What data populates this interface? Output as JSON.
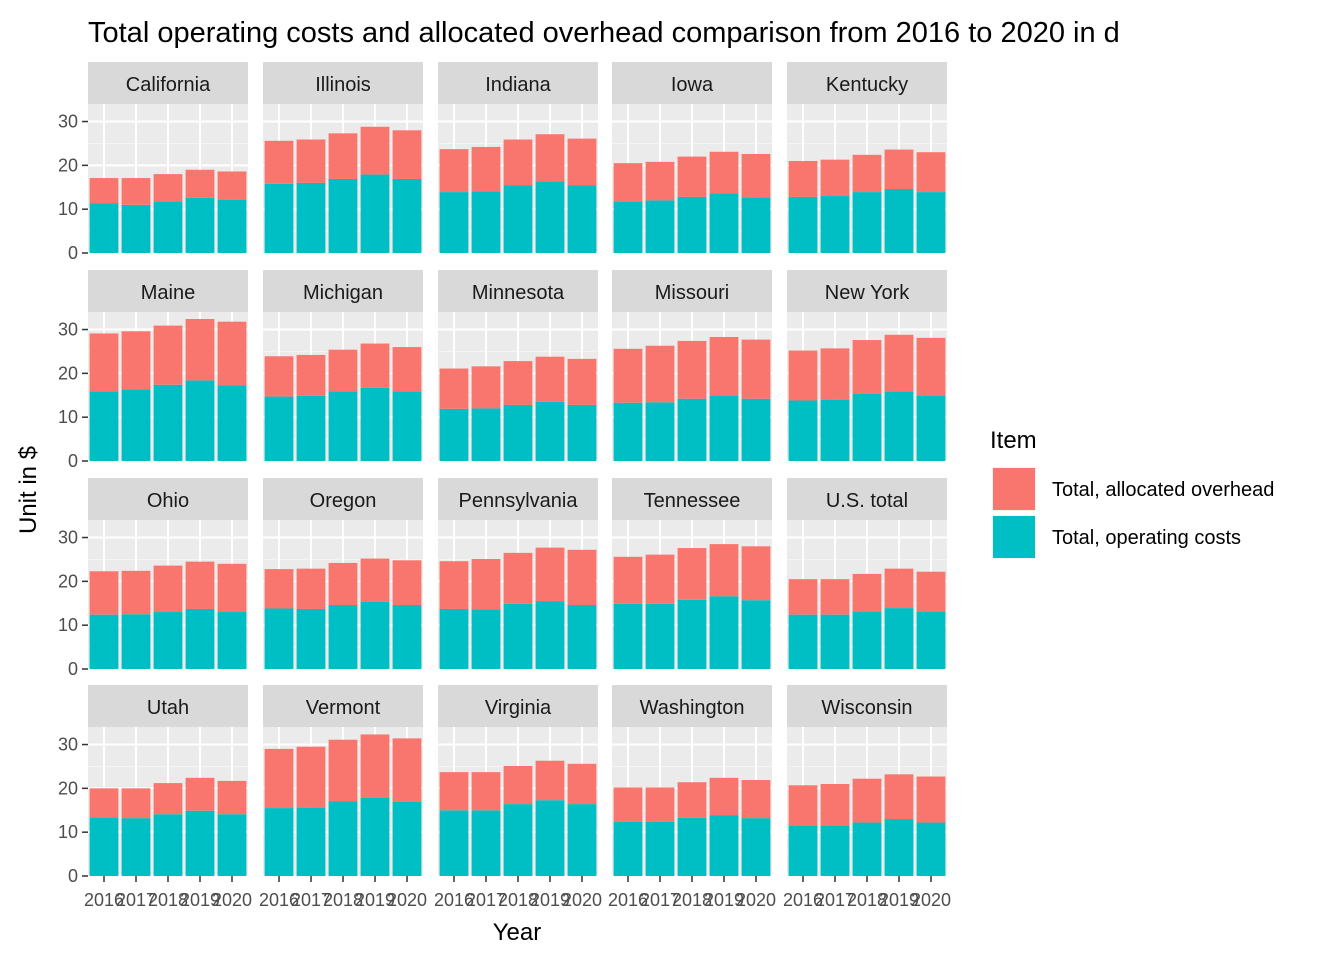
{
  "chart_data": {
    "type": "bar",
    "stacked": true,
    "faceted": true,
    "title": "Total operating costs and allocated overhead comparison from 2016 to 2020 in d",
    "xlabel": "Year",
    "ylabel": "Unit in $",
    "ylim": [
      0,
      34
    ],
    "yticks": [
      0,
      10,
      20,
      30
    ],
    "categories": [
      "2016",
      "2017",
      "2018",
      "2019",
      "2020"
    ],
    "grid": true,
    "legend": {
      "title": "Item",
      "position": "right",
      "entries": [
        {
          "name": "Total, allocated overhead",
          "color": "#F8766D"
        },
        {
          "name": "Total, operating costs",
          "color": "#00BFC4"
        }
      ]
    },
    "stack_order": [
      "Total, operating costs",
      "Total, allocated overhead"
    ],
    "panels": [
      {
        "name": "California",
        "operating": [
          11.3,
          11.0,
          11.8,
          12.6,
          12.1
        ],
        "overhead": [
          5.8,
          6.1,
          6.2,
          6.4,
          6.5
        ]
      },
      {
        "name": "Illinois",
        "operating": [
          15.8,
          16.0,
          16.9,
          17.9,
          16.9
        ],
        "overhead": [
          9.8,
          9.9,
          10.4,
          10.9,
          11.1
        ]
      },
      {
        "name": "Indiana",
        "operating": [
          13.9,
          14.1,
          15.4,
          16.3,
          15.4
        ],
        "overhead": [
          9.8,
          10.1,
          10.5,
          10.8,
          10.7
        ]
      },
      {
        "name": "Iowa",
        "operating": [
          11.8,
          12.0,
          12.8,
          13.6,
          12.7
        ],
        "overhead": [
          8.7,
          8.8,
          9.2,
          9.5,
          9.9
        ]
      },
      {
        "name": "Kentucky",
        "operating": [
          12.8,
          13.0,
          13.9,
          14.6,
          13.9
        ],
        "overhead": [
          8.2,
          8.3,
          8.5,
          9.0,
          9.1
        ]
      },
      {
        "name": "Maine",
        "operating": [
          15.9,
          16.3,
          17.4,
          18.4,
          17.3
        ],
        "overhead": [
          13.2,
          13.3,
          13.5,
          14.0,
          14.5
        ]
      },
      {
        "name": "Michigan",
        "operating": [
          14.7,
          14.9,
          15.9,
          16.7,
          15.9
        ],
        "overhead": [
          9.2,
          9.3,
          9.5,
          10.1,
          10.1
        ]
      },
      {
        "name": "Minnesota",
        "operating": [
          11.9,
          12.0,
          12.8,
          13.5,
          12.8
        ],
        "overhead": [
          9.2,
          9.6,
          10.0,
          10.3,
          10.5
        ]
      },
      {
        "name": "Missouri",
        "operating": [
          13.3,
          13.4,
          14.2,
          15.0,
          14.2
        ],
        "overhead": [
          12.3,
          12.9,
          13.2,
          13.3,
          13.5
        ]
      },
      {
        "name": "New York",
        "operating": [
          13.8,
          14.0,
          15.3,
          15.9,
          15.0
        ],
        "overhead": [
          11.4,
          11.7,
          12.3,
          12.9,
          13.1
        ]
      },
      {
        "name": "Ohio",
        "operating": [
          12.4,
          12.5,
          13.0,
          13.7,
          13.0
        ],
        "overhead": [
          9.9,
          9.9,
          10.6,
          10.8,
          11.0
        ]
      },
      {
        "name": "Oregon",
        "operating": [
          13.8,
          13.7,
          14.6,
          15.3,
          14.6
        ],
        "overhead": [
          9.0,
          9.2,
          9.6,
          9.9,
          10.2
        ]
      },
      {
        "name": "Pennsylvania",
        "operating": [
          13.7,
          13.6,
          14.9,
          15.5,
          14.6
        ],
        "overhead": [
          10.9,
          11.5,
          11.6,
          12.2,
          12.6
        ]
      },
      {
        "name": "Tennessee",
        "operating": [
          14.9,
          14.9,
          15.8,
          16.6,
          15.7
        ],
        "overhead": [
          10.7,
          11.2,
          11.8,
          11.9,
          12.3
        ]
      },
      {
        "name": "U.S. total",
        "operating": [
          12.4,
          12.4,
          13.1,
          13.9,
          13.1
        ],
        "overhead": [
          8.1,
          8.1,
          8.6,
          9.0,
          9.1
        ]
      },
      {
        "name": "Utah",
        "operating": [
          13.4,
          13.2,
          14.1,
          14.9,
          14.1
        ],
        "overhead": [
          6.6,
          6.8,
          7.1,
          7.5,
          7.6
        ]
      },
      {
        "name": "Vermont",
        "operating": [
          15.5,
          15.6,
          17.0,
          17.8,
          16.9
        ],
        "overhead": [
          13.5,
          13.9,
          14.1,
          14.5,
          14.5
        ]
      },
      {
        "name": "Virginia",
        "operating": [
          15.0,
          15.0,
          16.4,
          17.3,
          16.4
        ],
        "overhead": [
          8.7,
          8.7,
          8.7,
          9.0,
          9.2
        ]
      },
      {
        "name": "Washington",
        "operating": [
          12.4,
          12.4,
          13.3,
          13.9,
          13.2
        ],
        "overhead": [
          7.8,
          7.8,
          8.1,
          8.5,
          8.7
        ]
      },
      {
        "name": "Wisconsin",
        "operating": [
          11.5,
          11.5,
          12.2,
          13.0,
          12.2
        ],
        "overhead": [
          9.2,
          9.5,
          10.0,
          10.2,
          10.5
        ]
      }
    ]
  }
}
